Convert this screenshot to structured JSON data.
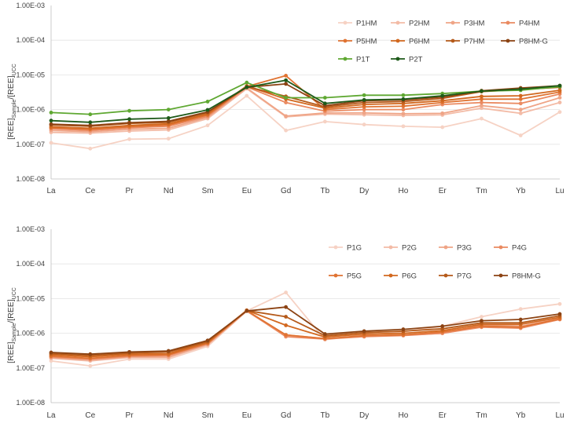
{
  "chart_data": [
    {
      "type": "line",
      "yscale": "log",
      "ylim": [
        1e-08,
        0.001
      ],
      "ytick_labels": [
        "1.00E-08",
        "1.00E-07",
        "1.00E-06",
        "1.00E-05",
        "1.00E-04",
        "1.00E-03"
      ],
      "ylabel": {
        "a": "[REE]",
        "b": "Sample",
        "c": "/[REE]",
        "d": "UCC"
      },
      "xlabel": "",
      "categories": [
        "La",
        "Ce",
        "Pr",
        "Nd",
        "Sm",
        "Eu",
        "Gd",
        "Tb",
        "Dy",
        "Ho",
        "Er",
        "Tm",
        "Yb",
        "Lu"
      ],
      "series": [
        {
          "name": "P1HM",
          "color": "#f6d2c4",
          "values": [
            1.1e-07,
            7.5e-08,
            1.4e-07,
            1.45e-07,
            3.5e-07,
            2.5e-06,
            2.5e-07,
            4.5e-07,
            3.7e-07,
            3.3e-07,
            3.1e-07,
            5.5e-07,
            1.8e-07,
            8.5e-07
          ]
        },
        {
          "name": "P2HM",
          "color": "#f3bba6",
          "values": [
            2.2e-07,
            2.1e-07,
            2.4e-07,
            2.6e-07,
            5.5e-07,
            4e-06,
            6.2e-07,
            7.4e-07,
            7.1e-07,
            6.8e-07,
            7e-07,
            1.1e-06,
            7.8e-07,
            1.6e-06
          ]
        },
        {
          "name": "P3HM",
          "color": "#efa486",
          "values": [
            2.5e-07,
            2.3e-07,
            2.7e-07,
            2.9e-07,
            6e-07,
            4.2e-06,
            6.5e-07,
            8e-07,
            8e-07,
            7.6e-07,
            7.8e-07,
            1.3e-06,
            1e-06,
            2.2e-06
          ]
        },
        {
          "name": "P4HM",
          "color": "#ea8a61",
          "values": [
            2.8e-07,
            2.5e-07,
            3e-07,
            3.3e-07,
            6.5e-07,
            4.5e-06,
            1.6e-06,
            9e-07,
            1e-06,
            1e-06,
            1.4e-06,
            1.6e-06,
            1.5e-06,
            2.8e-06
          ]
        },
        {
          "name": "P5HM",
          "color": "#e07332",
          "values": [
            3e-07,
            2.7e-07,
            3.2e-07,
            3.6e-07,
            7e-07,
            4.6e-06,
            9.5e-06,
            1e-06,
            1.2e-06,
            1.25e-06,
            1.6e-06,
            2e-06,
            2e-06,
            3.2e-06
          ]
        },
        {
          "name": "P6HM",
          "color": "#d2681f",
          "values": [
            3.2e-07,
            2.9e-07,
            3.5e-07,
            3.9e-07,
            7.5e-07,
            4.8e-06,
            2e-06,
            1.1e-06,
            1.4e-06,
            1.5e-06,
            1.8e-06,
            2.4e-06,
            2.5e-06,
            3.6e-06
          ]
        },
        {
          "name": "P7HM",
          "color": "#b55a1a",
          "values": [
            3.6e-07,
            3.3e-07,
            4e-07,
            4.3e-07,
            8.2e-07,
            4.6e-06,
            2.4e-06,
            1.2e-06,
            1.6e-06,
            1.7e-06,
            2.1e-06,
            3.3e-06,
            3.8e-06,
            4.4e-06
          ]
        },
        {
          "name": "P8HM-G",
          "color": "#8c4313",
          "values": [
            3.8e-07,
            3.5e-07,
            4.2e-07,
            4.6e-07,
            8.6e-07,
            4.4e-06,
            5.5e-06,
            1.3e-06,
            1.8e-06,
            1.9e-06,
            2.3e-06,
            3.5e-06,
            4.2e-06,
            4.9e-06
          ]
        },
        {
          "name": "P1T",
          "color": "#5fa832",
          "values": [
            8.2e-07,
            7.3e-07,
            9.2e-07,
            1e-06,
            1.7e-06,
            6e-06,
            2.2e-06,
            2.2e-06,
            2.6e-06,
            2.6e-06,
            2.9e-06,
            3.4e-06,
            3.6e-06,
            4.6e-06
          ]
        },
        {
          "name": "P2T",
          "color": "#1e5a1a",
          "values": [
            4.8e-07,
            4.3e-07,
            5.3e-07,
            5.7e-07,
            9.8e-07,
            4.4e-06,
            7e-06,
            1.5e-06,
            1.9e-06,
            2e-06,
            2.5e-06,
            3.4e-06,
            3.9e-06,
            4.9e-06
          ]
        }
      ]
    },
    {
      "type": "line",
      "yscale": "log",
      "ylim": [
        1e-08,
        0.001
      ],
      "ytick_labels": [
        "1.00E-08",
        "1.00E-07",
        "1.00E-06",
        "1.00E-05",
        "1.00E-04",
        "1.00E-03"
      ],
      "ylabel": {
        "a": "[REE]",
        "b": "Sample",
        "c": "/[REE]",
        "d": "UCC"
      },
      "xlabel": "",
      "categories": [
        "La",
        "Ce",
        "Pr",
        "Nd",
        "Sm",
        "Eu",
        "Gd",
        "Tb",
        "Dy",
        "Ho",
        "Er",
        "Tm",
        "Yb",
        "Lu"
      ],
      "series": [
        {
          "name": "P1G",
          "color": "#f6d2c4",
          "values": [
            1.6e-07,
            1.15e-07,
            1.8e-07,
            1.8e-07,
            4.2e-07,
            4.4e-06,
            1.5e-05,
            6.5e-07,
            9e-07,
            1.1e-06,
            1.6e-06,
            3e-06,
            5e-06,
            7e-06
          ]
        },
        {
          "name": "P2G",
          "color": "#f3bba6",
          "values": [
            1.9e-07,
            1.6e-07,
            2e-07,
            2e-07,
            4.6e-07,
            4.3e-06,
            8.5e-07,
            7e-07,
            8e-07,
            9e-07,
            1e-06,
            1.6e-06,
            1.5e-06,
            2.6e-06
          ]
        },
        {
          "name": "P3G",
          "color": "#efa486",
          "values": [
            2e-07,
            1.7e-07,
            2.1e-07,
            2.1e-07,
            4.8e-07,
            4.4e-06,
            9e-07,
            7e-07,
            8.2e-07,
            8.8e-07,
            1e-06,
            1.7e-06,
            1.6e-06,
            2.7e-06
          ]
        },
        {
          "name": "P4G",
          "color": "#ea8a61",
          "values": [
            2.1e-07,
            1.8e-07,
            2.2e-07,
            2.3e-07,
            5e-07,
            4.5e-06,
            8e-07,
            6.8e-07,
            8e-07,
            8.6e-07,
            1e-06,
            1.5e-06,
            1.4e-06,
            2.5e-06
          ]
        },
        {
          "name": "P5G",
          "color": "#e07332",
          "values": [
            2.2e-07,
            1.9e-07,
            2.3e-07,
            2.4e-07,
            5.2e-07,
            4.5e-06,
            9e-07,
            7e-07,
            8.5e-07,
            9e-07,
            1.1e-06,
            1.6e-06,
            1.5e-06,
            2.6e-06
          ]
        },
        {
          "name": "P6G",
          "color": "#d2681f",
          "values": [
            2.4e-07,
            2.1e-07,
            2.5e-07,
            2.6e-07,
            5.5e-07,
            4.6e-06,
            1.7e-06,
            7.8e-07,
            9.5e-07,
            1e-06,
            1.2e-06,
            1.8e-06,
            1.8e-06,
            2.9e-06
          ]
        },
        {
          "name": "P7G",
          "color": "#b55a1a",
          "values": [
            2.6e-07,
            2.3e-07,
            2.7e-07,
            2.9e-07,
            5.8e-07,
            4.5e-06,
            3e-06,
            8.5e-07,
            1.05e-06,
            1.15e-06,
            1.35e-06,
            2e-06,
            2e-06,
            3.2e-06
          ]
        },
        {
          "name": "P8HM-G",
          "color": "#8c4313",
          "values": [
            2.8e-07,
            2.5e-07,
            2.9e-07,
            3.1e-07,
            6.2e-07,
            4.4e-06,
            5.7e-06,
            9.5e-07,
            1.15e-06,
            1.3e-06,
            1.6e-06,
            2.3e-06,
            2.5e-06,
            3.6e-06
          ]
        }
      ]
    }
  ]
}
